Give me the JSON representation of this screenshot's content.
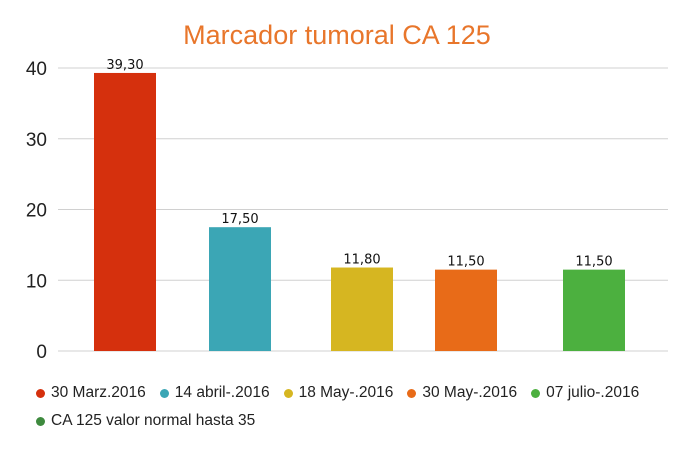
{
  "chart_data": {
    "type": "bar",
    "title": "Marcador tumoral CA 125",
    "xlabel": "",
    "ylabel": "",
    "ylim": [
      0,
      40
    ],
    "yticks": [
      0,
      10,
      20,
      30,
      40
    ],
    "grid": true,
    "legend_position": "bottom",
    "title_color": "#E8762B",
    "categories": [
      "30 Marz.2016",
      "14 abril-.2016",
      "18 May-.2016",
      "30 May-.2016",
      "07 julio-.2016"
    ],
    "values": [
      39.3,
      17.5,
      11.8,
      11.5,
      11.5
    ],
    "data_labels": [
      "39,30",
      "17,50",
      "11,80",
      "11,50",
      "11,50"
    ],
    "colors": [
      "#D5300D",
      "#3BA6B5",
      "#D6B621",
      "#E86B18",
      "#4CB03F"
    ],
    "legend": [
      {
        "label": "30 Marz.2016",
        "color": "#D5300D"
      },
      {
        "label": "14 abril-.2016",
        "color": "#3BA6B5"
      },
      {
        "label": "18 May-.2016",
        "color": "#D6B621"
      },
      {
        "label": "30 May-.2016",
        "color": "#E86B18"
      },
      {
        "label": "07 julio-.2016",
        "color": "#4CB03F"
      },
      {
        "label": "CA 125 valor normal hasta 35",
        "color": "#3E8A3E"
      }
    ]
  }
}
